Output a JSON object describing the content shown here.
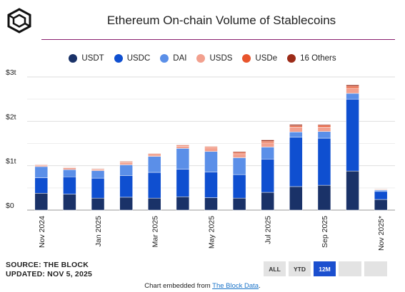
{
  "header": {
    "title": "Ethereum On-chain Volume of Stablecoins",
    "logo_icon": "the-block-cube-logo"
  },
  "legend": [
    {
      "label": "USDT",
      "color": "#1a3268"
    },
    {
      "label": "USDC",
      "color": "#0f4fd0"
    },
    {
      "label": "DAI",
      "color": "#5b8fe8"
    },
    {
      "label": "USDS",
      "color": "#f2a08e"
    },
    {
      "label": "USDe",
      "color": "#e8542c"
    },
    {
      "label": "16 Others",
      "color": "#9c2b18"
    }
  ],
  "chart_data": {
    "type": "bar",
    "stacked": true,
    "title": "Ethereum On-chain Volume of Stablecoins",
    "unit": "USD",
    "y_ticks": [
      "$0",
      "$1t",
      "$2t",
      "$3t"
    ],
    "ylim": [
      0,
      3
    ],
    "grid": true,
    "legend_position": "top",
    "x_tick_labels": [
      "Nov 2024",
      "Jan 2025",
      "Mar 2025",
      "May 2025",
      "Jul 2025",
      "Sep 2025",
      "Nov 2025*"
    ],
    "x_tick_positions": [
      0,
      2,
      4,
      6,
      8,
      10,
      12
    ],
    "categories": [
      "Nov 2024",
      "Dec 2024",
      "Jan 2025",
      "Feb 2025",
      "Mar 2025",
      "Apr 2025",
      "May 2025",
      "Jun 2025",
      "Jul 2025",
      "Aug 2025",
      "Sep 2025",
      "Oct 2025",
      "Nov 2025*"
    ],
    "series": [
      {
        "name": "USDT",
        "color": "#1a3268",
        "values": [
          0.38,
          0.36,
          0.27,
          0.29,
          0.27,
          0.3,
          0.28,
          0.27,
          0.4,
          0.53,
          0.56,
          0.88,
          0.24
        ]
      },
      {
        "name": "USDC",
        "color": "#0f4fd0",
        "values": [
          0.35,
          0.39,
          0.45,
          0.49,
          0.58,
          0.62,
          0.58,
          0.53,
          0.75,
          1.11,
          1.06,
          1.62,
          0.18
        ]
      },
      {
        "name": "DAI",
        "color": "#5b8fe8",
        "values": [
          0.25,
          0.16,
          0.17,
          0.24,
          0.36,
          0.47,
          0.46,
          0.38,
          0.27,
          0.12,
          0.15,
          0.13,
          0.03
        ]
      },
      {
        "name": "USDS",
        "color": "#f2a08e",
        "values": [
          0.03,
          0.04,
          0.03,
          0.05,
          0.04,
          0.05,
          0.09,
          0.09,
          0.1,
          0.11,
          0.1,
          0.12,
          0.01
        ]
      },
      {
        "name": "USDe",
        "color": "#e8542c",
        "values": [
          0.01,
          0.01,
          0.01,
          0.02,
          0.02,
          0.02,
          0.02,
          0.03,
          0.03,
          0.03,
          0.04,
          0.04,
          0.01
        ]
      },
      {
        "name": "16 Others",
        "color": "#9c2b18",
        "values": [
          0.01,
          0.01,
          0.01,
          0.01,
          0.01,
          0.01,
          0.01,
          0.02,
          0.03,
          0.03,
          0.02,
          0.03,
          0.01
        ]
      }
    ]
  },
  "source": {
    "line1": "SOURCE: THE BLOCK",
    "line2": "UPDATED: NOV 5, 2025"
  },
  "range_buttons": [
    {
      "label": "ALL",
      "active": false
    },
    {
      "label": "YTD",
      "active": false
    },
    {
      "label": "12M",
      "active": true
    },
    {
      "label": "",
      "active": false
    },
    {
      "label": "",
      "active": false
    }
  ],
  "footer": {
    "prefix": "Chart embedded from ",
    "link_text": "The Block Data",
    "suffix": "."
  }
}
